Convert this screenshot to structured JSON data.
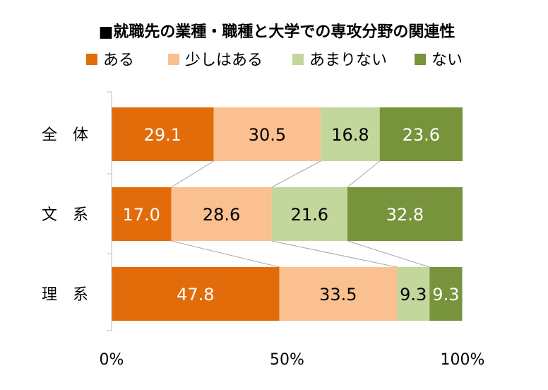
{
  "chart_data": {
    "type": "bar",
    "stacked": true,
    "orientation": "horizontal",
    "percent": true,
    "title": "■就職先の業種・職種と大学での専攻分野の関連性",
    "categories": [
      "全　体",
      "文　系",
      "理　系"
    ],
    "series": [
      {
        "name": "ある",
        "color": "#e36c0a",
        "values": [
          29.1,
          17.0,
          47.8
        ],
        "labels": [
          "29.1",
          "17.0",
          "47.8"
        ],
        "label_color": "#ffffff"
      },
      {
        "name": "少しはある",
        "color": "#fac090",
        "values": [
          30.5,
          28.6,
          33.5
        ],
        "labels": [
          "30.5",
          "28.6",
          "33.5"
        ],
        "label_color": "#000000"
      },
      {
        "name": "あまりない",
        "color": "#c3d69b",
        "values": [
          16.8,
          21.6,
          9.3
        ],
        "labels": [
          "16.8",
          "21.6",
          "9.3"
        ],
        "label_color": "#000000"
      },
      {
        "name": "ない",
        "color": "#77933c",
        "values": [
          23.6,
          32.8,
          9.3
        ],
        "labels": [
          "23.6",
          "32.8",
          "9.3"
        ],
        "label_color": "#ffffff"
      }
    ],
    "xlim": [
      0,
      100
    ],
    "x_ticks": [
      "0%",
      "50%",
      "100%"
    ],
    "x_tick_values": [
      0,
      50,
      100
    ],
    "legend": "top",
    "series_lines": true,
    "grid": false
  }
}
